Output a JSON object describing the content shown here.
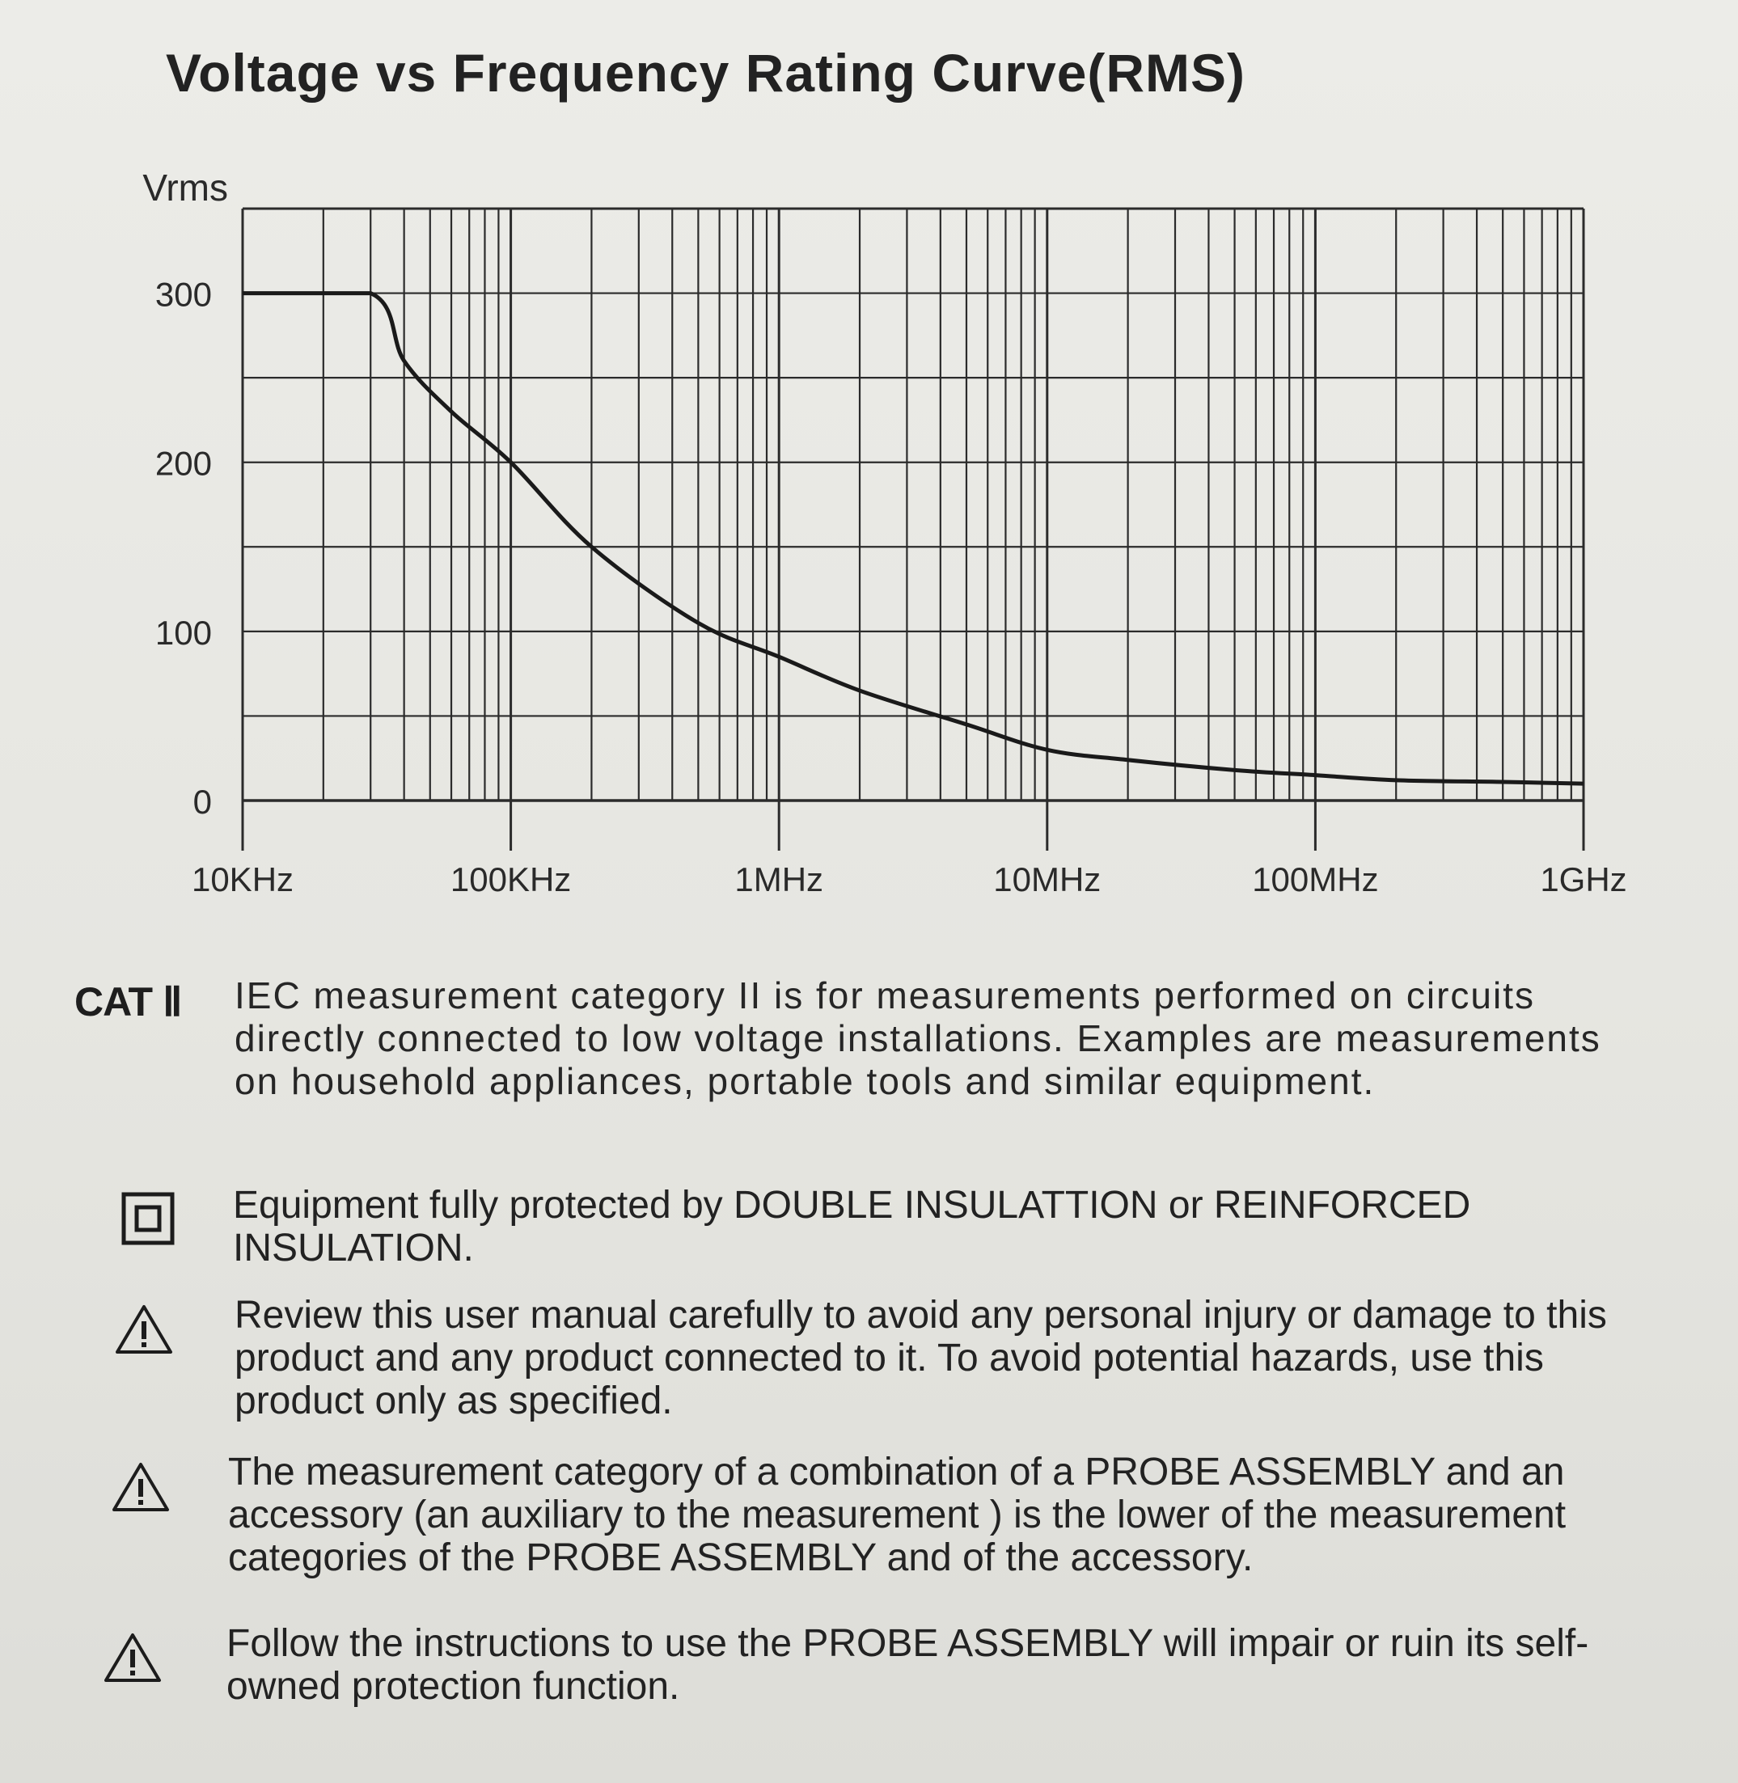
{
  "title": "Voltage vs Frequency Rating Curve(RMS)",
  "chart_data": {
    "type": "line",
    "title": "Voltage vs Frequency Rating Curve(RMS)",
    "ylabel": "Vrms",
    "xlabel": "",
    "x_scale": "log",
    "x_unit": "Hz",
    "ylim": [
      0,
      350
    ],
    "xlim": [
      10000,
      1000000000
    ],
    "grid": true,
    "y_ticks": [
      0,
      100,
      200,
      300
    ],
    "y_tick_labels": [
      "0",
      "100",
      "200",
      "300"
    ],
    "x_ticks": [
      10000,
      100000,
      1000000,
      10000000,
      100000000,
      1000000000
    ],
    "x_tick_labels": [
      "10KHz",
      "100KHz",
      "1MHz",
      "10MHz",
      "100MHz",
      "1GHz"
    ],
    "series": [
      {
        "x": [
          10000,
          30000,
          40000,
          60000,
          100000,
          200000,
          500000,
          1000000,
          2000000,
          5000000,
          10000000,
          20000000,
          50000000,
          100000000,
          200000000,
          500000000,
          1000000000
        ],
        "y": [
          300,
          300,
          260,
          230,
          200,
          150,
          105,
          85,
          65,
          45,
          30,
          24,
          18,
          15,
          12,
          11,
          10
        ]
      }
    ]
  },
  "notes": {
    "cat_label": "CAT Ⅱ",
    "cat_text": "IEC measurement category II is for measurements performed on circuits directly connected to low voltage installations. Examples are measurements on household appliances, portable tools and similar equipment.",
    "double_insulation": "Equipment fully protected by DOUBLE INSULATTION or REINFORCED INSULATION.",
    "warning_1": "Review this user manual carefully to avoid any personal injury or damage to this product and any product connected to it. To avoid potential hazards, use this product only as specified.",
    "warning_2": "The measurement category of a combination of a PROBE ASSEMBLY and an accessory (an auxiliary to the measurement ) is the lower of the measurement categories of the PROBE ASSEMBLY and of the accessory.",
    "warning_3": "Follow the instructions to use the PROBE ASSEMBLY will impair or ruin its self-owned protection function."
  }
}
